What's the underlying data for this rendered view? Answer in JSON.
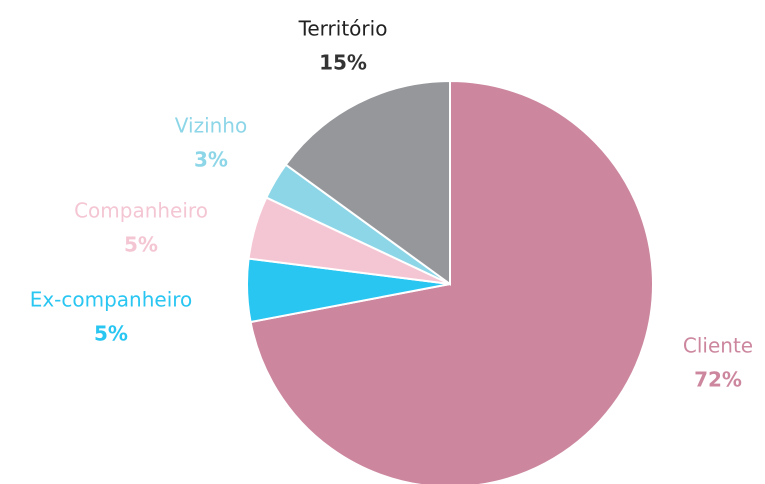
{
  "chart_data": {
    "type": "pie",
    "categories": [
      "Cliente",
      "Ex-companheiro",
      "Companheiro",
      "Vizinho",
      "Território"
    ],
    "values": [
      72,
      5,
      5,
      3,
      15
    ],
    "value_labels": [
      "72%",
      "5%",
      "5%",
      "3%",
      "15%"
    ],
    "colors": [
      "#cc879f",
      "#29c6f2",
      "#f4c6d3",
      "#8dd6e8",
      "#96979b"
    ]
  }
}
